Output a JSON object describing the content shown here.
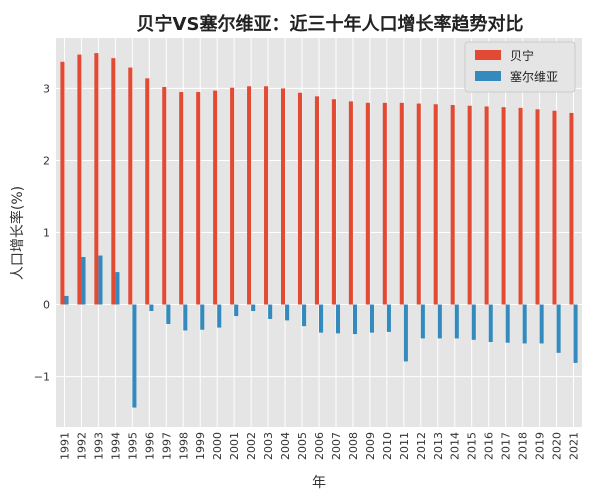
{
  "chart_data": {
    "type": "bar",
    "title": "贝宁VS塞尔维亚：近三十年人口增长率趋势对比",
    "xlabel": "年",
    "ylabel": "人口增长率(%)",
    "ylim": [
      -1.7,
      3.7
    ],
    "yticks": [
      -1,
      0,
      1,
      2,
      3
    ],
    "ytick_labels": [
      "−1",
      "0",
      "1",
      "2",
      "3"
    ],
    "grid": true,
    "legend_position": "top-right",
    "categories": [
      "1991",
      "1992",
      "1993",
      "1994",
      "1995",
      "1996",
      "1997",
      "1998",
      "1999",
      "2000",
      "2001",
      "2002",
      "2003",
      "2004",
      "2005",
      "2006",
      "2007",
      "2008",
      "2009",
      "2010",
      "2011",
      "2012",
      "2013",
      "2014",
      "2015",
      "2016",
      "2017",
      "2018",
      "2019",
      "2020",
      "2021"
    ],
    "series": [
      {
        "name": "贝宁",
        "color": "#E24A33",
        "values": [
          3.37,
          3.47,
          3.49,
          3.42,
          3.29,
          3.14,
          3.02,
          2.95,
          2.95,
          2.97,
          3.01,
          3.03,
          3.03,
          3.0,
          2.94,
          2.89,
          2.85,
          2.82,
          2.8,
          2.8,
          2.8,
          2.79,
          2.78,
          2.77,
          2.76,
          2.75,
          2.74,
          2.73,
          2.71,
          2.69,
          2.66
        ]
      },
      {
        "name": "塞尔维亚",
        "color": "#348ABD",
        "values": [
          0.12,
          0.66,
          0.68,
          0.45,
          -1.43,
          -0.09,
          -0.27,
          -0.36,
          -0.35,
          -0.32,
          -0.16,
          -0.09,
          -0.2,
          -0.22,
          -0.3,
          -0.39,
          -0.4,
          -0.41,
          -0.39,
          -0.38,
          -0.79,
          -0.47,
          -0.47,
          -0.47,
          -0.49,
          -0.52,
          -0.53,
          -0.54,
          -0.54,
          -0.67,
          -0.81
        ]
      }
    ]
  }
}
